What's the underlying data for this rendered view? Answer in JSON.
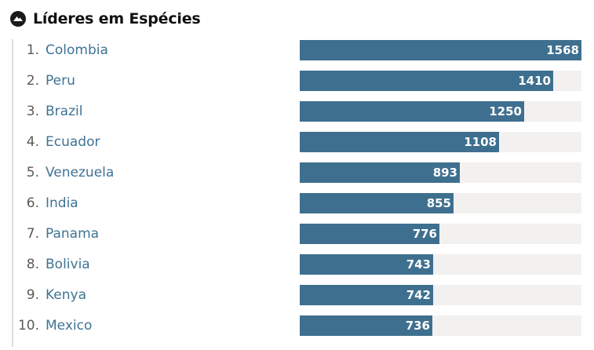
{
  "header": {
    "title": "Líderes em Espécies",
    "logo_icon": "mountain-pin-icon"
  },
  "colors": {
    "bar": "#3e6f8f",
    "track": "#f2f1ef",
    "country_text": "#3f7394",
    "rank_text": "#5a5a5a",
    "title_text": "#111111"
  },
  "chart_data": {
    "type": "bar",
    "orientation": "horizontal",
    "title": "Líderes em Espécies",
    "xlim": [
      0,
      1568
    ],
    "ranks": [
      "1.",
      "2.",
      "3.",
      "4.",
      "5.",
      "6.",
      "7.",
      "8.",
      "9.",
      "10."
    ],
    "categories": [
      "Colombia",
      "Peru",
      "Brazil",
      "Ecuador",
      "Venezuela",
      "India",
      "Panama",
      "Bolivia",
      "Kenya",
      "Mexico"
    ],
    "values": [
      1568,
      1410,
      1250,
      1108,
      893,
      855,
      776,
      743,
      742,
      736
    ],
    "value_labels": [
      "1568",
      "1410",
      "1250",
      "1108",
      "893",
      "855",
      "776",
      "743",
      "742",
      "736"
    ]
  }
}
